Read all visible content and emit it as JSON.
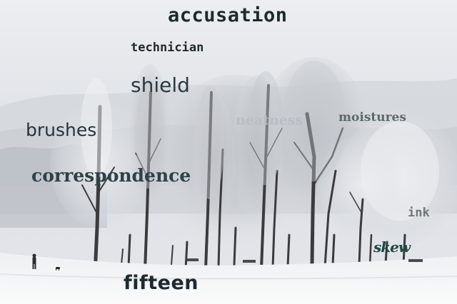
{
  "scene": {
    "icon": "winter-landscape-photo"
  },
  "words": {
    "accusation": "accusation",
    "technician": "technician",
    "shield": "shield",
    "brushes": "brushes",
    "moistures": "moistures",
    "correspondence": "correspondence",
    "ink": "ink",
    "skew": "skew",
    "fifteen": "fifteen",
    "faint": "neatness"
  },
  "colors": {
    "snow": "#f3f4f6",
    "fog": "#dfe2e7",
    "trunk": "#3a3a3c",
    "frost": "#c9ccd1",
    "text_dark": "#1d2a30"
  }
}
